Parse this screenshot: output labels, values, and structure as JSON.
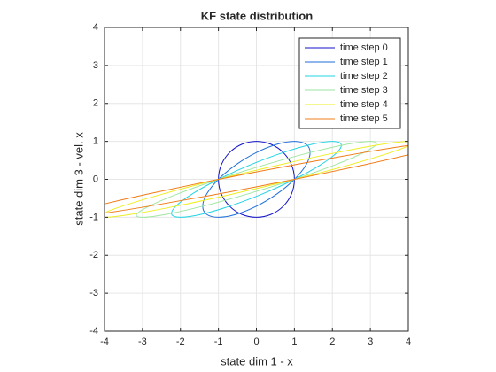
{
  "chart_data": {
    "type": "line",
    "title": "KF state distribution",
    "xlabel": "state dim 1 - x",
    "ylabel": "state dim 3 - vel. x",
    "xlim": [
      -4,
      4
    ],
    "ylim": [
      -4,
      4
    ],
    "xticks": [
      -4,
      -3,
      -2,
      -1,
      0,
      1,
      2,
      3,
      4
    ],
    "yticks": [
      -4,
      -3,
      -2,
      -1,
      0,
      1,
      2,
      3,
      4
    ],
    "grid": true,
    "legend": "northeast",
    "closed": true,
    "series": [
      {
        "name": "time step 0",
        "color": "#1010c8",
        "x": [
          1,
          0.924,
          0.707,
          0.383,
          0,
          -0.383,
          -0.707,
          -0.924,
          -1,
          -0.924,
          -0.707,
          -0.383,
          0,
          0.383,
          0.707,
          0.924
        ],
        "y": [
          0,
          0.383,
          0.707,
          0.924,
          1,
          0.924,
          0.707,
          0.383,
          0,
          -0.383,
          -0.707,
          -0.924,
          -1,
          -0.924,
          -0.707,
          -0.383
        ]
      },
      {
        "name": "time step 1",
        "color": "#1f6fdc",
        "x": [
          1,
          1.307,
          1.414,
          1.307,
          1,
          0.541,
          0,
          -0.541,
          -1,
          -1.307,
          -1.414,
          -1.307,
          -1,
          -0.541,
          0,
          0.541
        ],
        "y": [
          0,
          0.383,
          0.707,
          0.924,
          1,
          0.924,
          0.707,
          0.383,
          0,
          -0.383,
          -0.707,
          -0.924,
          -1,
          -0.924,
          -0.707,
          -0.383
        ]
      },
      {
        "name": "time step 2",
        "color": "#22d4e4",
        "x": [
          1,
          1.69,
          2.121,
          2.231,
          2,
          1.465,
          0.707,
          -0.158,
          -1,
          -1.69,
          -2.121,
          -2.231,
          -2,
          -1.465,
          -0.707,
          0.158
        ],
        "y": [
          0,
          0.383,
          0.707,
          0.924,
          1,
          0.924,
          0.707,
          0.383,
          0,
          -0.383,
          -0.707,
          -0.924,
          -1,
          -0.924,
          -0.707,
          -0.383
        ]
      },
      {
        "name": "time step 3",
        "color": "#9ee6a0",
        "x": [
          1,
          2.073,
          2.828,
          3.155,
          3,
          2.389,
          1.414,
          0.225,
          -1,
          -2.073,
          -2.828,
          -3.155,
          -3,
          -2.389,
          -1.414,
          -0.225
        ],
        "y": [
          0,
          0.383,
          0.707,
          0.924,
          1,
          0.924,
          0.707,
          0.383,
          0,
          -0.383,
          -0.707,
          -0.924,
          -1,
          -0.924,
          -0.707,
          -0.383
        ]
      },
      {
        "name": "time step 4",
        "color": "#eeee22",
        "x": [
          1,
          2.456,
          3.535,
          4.079,
          4,
          3.313,
          2.121,
          0.608,
          -1,
          -2.456,
          -3.535,
          -4.079,
          -4,
          -3.313,
          -2.121,
          -0.608
        ],
        "y": [
          0,
          0.383,
          0.707,
          0.924,
          1,
          0.924,
          0.707,
          0.383,
          0,
          -0.383,
          -0.707,
          -0.924,
          -1,
          -0.924,
          -0.707,
          -0.383
        ]
      },
      {
        "name": "time step 5",
        "color": "#f07c18",
        "x": [
          1,
          2.839,
          4.242,
          5.003,
          5,
          4.237,
          2.828,
          0.991,
          -1,
          -2.839,
          -4.242,
          -5.003,
          -5,
          -4.237,
          -2.828,
          -0.991
        ],
        "y": [
          0,
          0.383,
          0.707,
          0.924,
          1,
          0.924,
          0.707,
          0.383,
          0,
          -0.383,
          -0.707,
          -0.924,
          -1,
          -0.924,
          -0.707,
          -0.383
        ]
      }
    ]
  }
}
